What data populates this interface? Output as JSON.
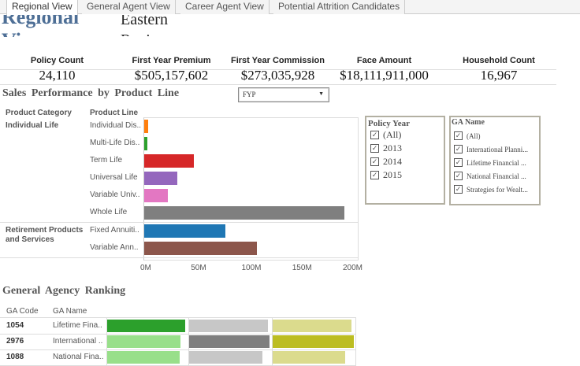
{
  "tabs": [
    "Regional View",
    "General Agent View",
    "Career Agent View",
    "Potential Attrition Candidates"
  ],
  "header": {
    "title": "Regional View",
    "region": "Eastern Region"
  },
  "kpis": [
    {
      "label": "Policy Count",
      "value": "24,110"
    },
    {
      "label": "First Year Premium",
      "value": "$505,157,602"
    },
    {
      "label": "First Year Commission",
      "value": "$273,035,928"
    },
    {
      "label": "Face Amount",
      "value": "$18,111,911,000"
    },
    {
      "label": "Household Count",
      "value": "16,967"
    }
  ],
  "sales": {
    "title": "Sales Performance by Product Line",
    "measure_select": "FYP",
    "col_category": "Product Category",
    "col_line": "Product Line"
  },
  "chart_data": {
    "type": "bar",
    "orientation": "horizontal",
    "groups": [
      {
        "category": "Individual Life",
        "lines": [
          "Individual Dis..",
          "Multi-Life Dis..",
          "Term Life",
          "Universal Life",
          "Variable Univ..",
          "Whole Life"
        ],
        "values": [
          4,
          3,
          49,
          33,
          23,
          198
        ],
        "colors": [
          "#ff7f0e",
          "#2ca02c",
          "#d62728",
          "#9467bd",
          "#e377c2",
          "#7f7f7f"
        ]
      },
      {
        "category": "Retirement Products and Services",
        "lines": [
          "Fixed Annuiti..",
          "Variable Ann.."
        ],
        "values": [
          80,
          111
        ],
        "colors": [
          "#1f77b4",
          "#8c564b"
        ]
      }
    ],
    "units": "M",
    "xlim": [
      0,
      200
    ],
    "xticks": [
      "0M",
      "50M",
      "100M",
      "150M",
      "200M"
    ]
  },
  "filters": {
    "policy_year": {
      "title": "Policy Year",
      "items": [
        "(All)",
        "2013",
        "2014",
        "2015"
      ]
    },
    "ga_name": {
      "title": "GA Name",
      "items": [
        "(All)",
        "International Planni...",
        "Lifetime Financial ...",
        "National Financial ...",
        "Strategies for Wealt..."
      ]
    }
  },
  "ranking": {
    "title": "General Agency Ranking",
    "col_code": "GA Code",
    "col_name": "GA Name",
    "rows": [
      {
        "code": "1054",
        "name": "Lifetime Fina..",
        "bars": [
          {
            "fill": 0.98,
            "color": "#2ca02c"
          },
          {
            "fill": 0.98,
            "color": "#c7c7c7"
          },
          {
            "fill": 0.97,
            "color": "#dbdb8d"
          }
        ]
      },
      {
        "code": "2976",
        "name": "International ..",
        "bars": [
          {
            "fill": 0.92,
            "color": "#98df8a"
          },
          {
            "fill": 1.0,
            "color": "#7f7f7f"
          },
          {
            "fill": 1.0,
            "color": "#bcbd22"
          }
        ]
      },
      {
        "code": "1088",
        "name": "National Fina..",
        "bars": [
          {
            "fill": 0.91,
            "color": "#98df8a"
          },
          {
            "fill": 0.91,
            "color": "#c7c7c7"
          },
          {
            "fill": 0.89,
            "color": "#dbdb8d"
          }
        ]
      }
    ]
  }
}
